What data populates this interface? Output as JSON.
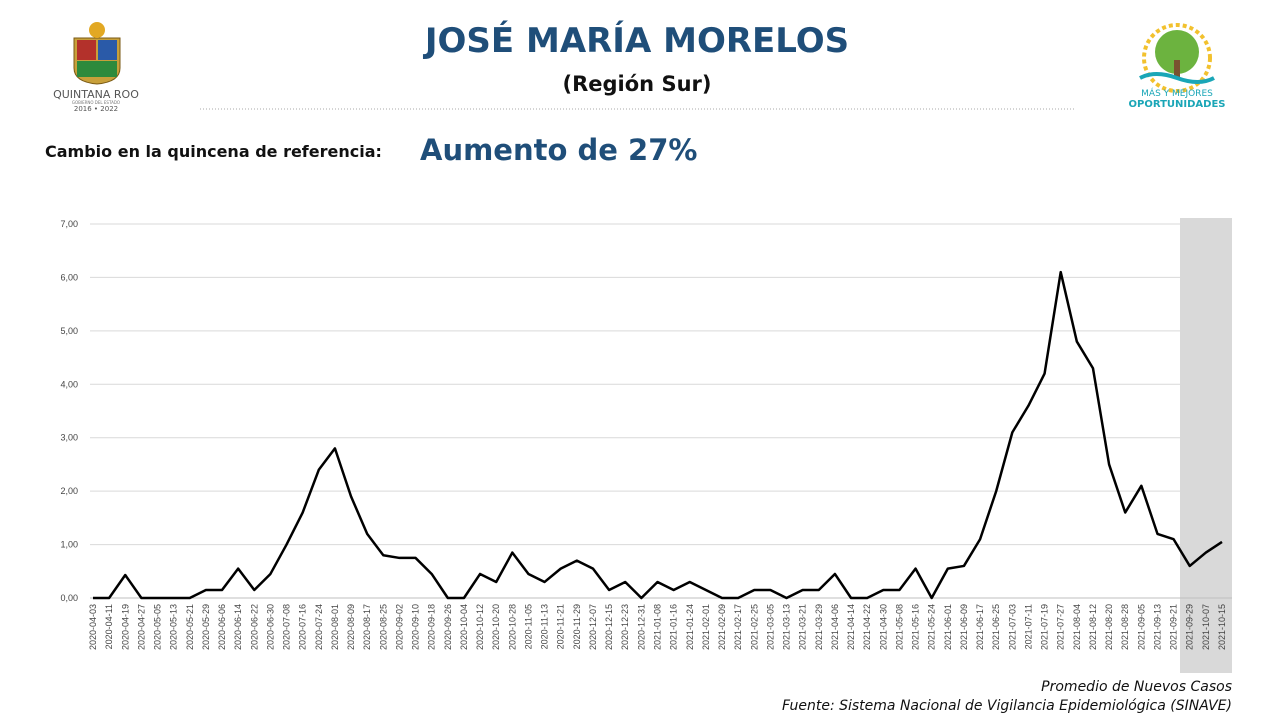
{
  "header": {
    "title": "JOSÉ MARÍA MORELOS",
    "subtitle": "(Región Sur)",
    "change_label": "Cambio en la quincena de referencia:",
    "change_value": "Aumento de 27%",
    "left_logo": {
      "name": "QUINTANA ROO",
      "subtitle": "GOBIERNO DEL ESTADO",
      "years": "2016 • 2022"
    },
    "right_logo": {
      "line1": "MÁS Y MEJORES",
      "line2": "OPORTUNIDADES"
    }
  },
  "chart_data": {
    "type": "line",
    "x": [
      "2020-04-03",
      "2020-04-11",
      "2020-04-19",
      "2020-04-27",
      "2020-05-05",
      "2020-05-13",
      "2020-05-21",
      "2020-05-29",
      "2020-06-06",
      "2020-06-14",
      "2020-06-22",
      "2020-06-30",
      "2020-07-08",
      "2020-07-16",
      "2020-07-24",
      "2020-08-01",
      "2020-08-09",
      "2020-08-17",
      "2020-08-25",
      "2020-09-02",
      "2020-09-10",
      "2020-09-18",
      "2020-09-26",
      "2020-10-04",
      "2020-10-12",
      "2020-10-20",
      "2020-10-28",
      "2020-11-05",
      "2020-11-13",
      "2020-11-21",
      "2020-11-29",
      "2020-12-07",
      "2020-12-15",
      "2020-12-23",
      "2020-12-31",
      "2021-01-08",
      "2021-01-16",
      "2021-01-24",
      "2021-02-01",
      "2021-02-09",
      "2021-02-17",
      "2021-02-25",
      "2021-03-05",
      "2021-03-13",
      "2021-03-21",
      "2021-03-29",
      "2021-04-06",
      "2021-04-14",
      "2021-04-22",
      "2021-04-30",
      "2021-05-08",
      "2021-05-16",
      "2021-05-24",
      "2021-06-01",
      "2021-06-09",
      "2021-06-17",
      "2021-06-25",
      "2021-07-03",
      "2021-07-11",
      "2021-07-19",
      "2021-07-27",
      "2021-08-04",
      "2021-08-12",
      "2021-08-20",
      "2021-08-28",
      "2021-09-05",
      "2021-09-13",
      "2021-09-21",
      "2021-09-29",
      "2021-10-07",
      "2021-10-15"
    ],
    "values": [
      0,
      0,
      0.43,
      0,
      0,
      0,
      0,
      0.15,
      0.15,
      0.55,
      0.15,
      0.45,
      1.0,
      1.6,
      2.4,
      2.8,
      1.9,
      1.2,
      0.8,
      0.75,
      0.75,
      0.45,
      0,
      0,
      0.45,
      0.3,
      0.85,
      0.45,
      0.3,
      0.55,
      0.7,
      0.55,
      0.15,
      0.3,
      0,
      0.3,
      0.15,
      0.3,
      0.15,
      0,
      0,
      0.15,
      0.15,
      0,
      0.15,
      0.15,
      0.45,
      0,
      0,
      0.15,
      0.15,
      0.55,
      0,
      0.55,
      0.6,
      1.1,
      2.0,
      3.1,
      3.6,
      4.2,
      6.1,
      4.8,
      4.3,
      2.5,
      1.6,
      2.1,
      1.2,
      1.1,
      0.6,
      0.85,
      1.05
    ],
    "color": "#000000",
    "ylim": [
      0,
      7
    ],
    "yticks": [
      {
        "value": 0,
        "label": "0,00"
      },
      {
        "value": 1,
        "label": "1,00"
      },
      {
        "value": 2,
        "label": "2,00"
      },
      {
        "value": 3,
        "label": "3,00"
      },
      {
        "value": 4,
        "label": "4,00"
      },
      {
        "value": 5,
        "label": "5,00"
      },
      {
        "value": 6,
        "label": "6,00"
      },
      {
        "value": 7,
        "label": "7,00"
      }
    ],
    "grid": true,
    "notes": [
      "Promedio de Nuevos Casos",
      "Fuente: Sistema Nacional de Vigilancia Epidemiológica (SINAVE)"
    ]
  }
}
